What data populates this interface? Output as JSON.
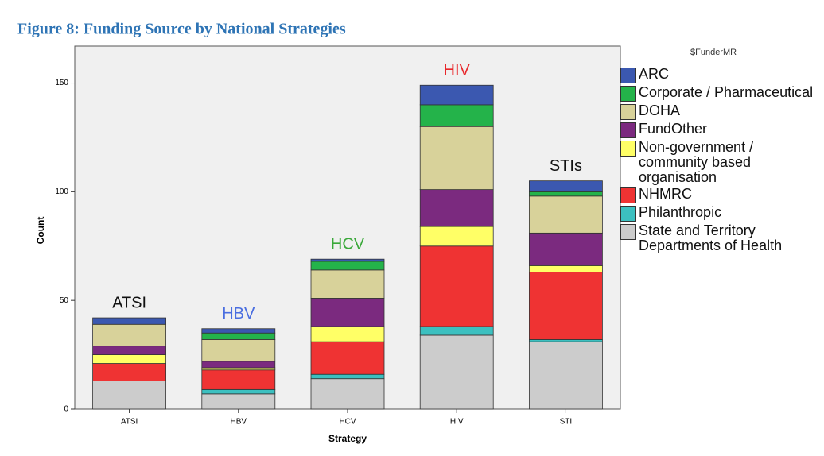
{
  "chart_data": {
    "type": "stacked_bar",
    "title": "Figure 8: Funding Source by National Strategies",
    "y_label": "Count",
    "x_label": "Strategy",
    "legend_title": "$FunderMR",
    "categories": [
      "ATSI",
      "HBV",
      "HCV",
      "HIV",
      "STI"
    ],
    "annotations": [
      {
        "text": "ATSI",
        "color": "#111111"
      },
      {
        "text": "HBV",
        "color": "#4a6ee0"
      },
      {
        "text": "HCV",
        "color": "#3aa83a"
      },
      {
        "text": "HIV",
        "color": "#e8262a"
      },
      {
        "text": "STIs",
        "color": "#111111"
      }
    ],
    "series": [
      {
        "name": "State and Territory Departments of Health",
        "color": "#cccccc",
        "values": [
          13,
          7,
          14,
          34,
          31
        ]
      },
      {
        "name": "Philanthropic",
        "color": "#3cc0c0",
        "values": [
          0,
          2,
          2,
          4,
          1
        ]
      },
      {
        "name": "NHMRC",
        "color": "#ef3333",
        "values": [
          8,
          9,
          15,
          37,
          31
        ]
      },
      {
        "name": "Non-government / community based organisation",
        "color": "#ffff66",
        "values": [
          4,
          1,
          7,
          9,
          3
        ]
      },
      {
        "name": "FundOther",
        "color": "#7b2a7f",
        "values": [
          4,
          3,
          13,
          17,
          15
        ]
      },
      {
        "name": "DOHA",
        "color": "#d8d29a",
        "values": [
          10,
          10,
          13,
          29,
          17
        ]
      },
      {
        "name": "Corporate / Pharmaceutical",
        "color": "#24b34a",
        "values": [
          0,
          3,
          4,
          10,
          2
        ]
      },
      {
        "name": "ARC",
        "color": "#3b58b0",
        "values": [
          3,
          2,
          1,
          9,
          5
        ]
      }
    ],
    "ylim": [
      0,
      167
    ],
    "yticks": [
      0,
      50,
      100,
      150
    ]
  }
}
